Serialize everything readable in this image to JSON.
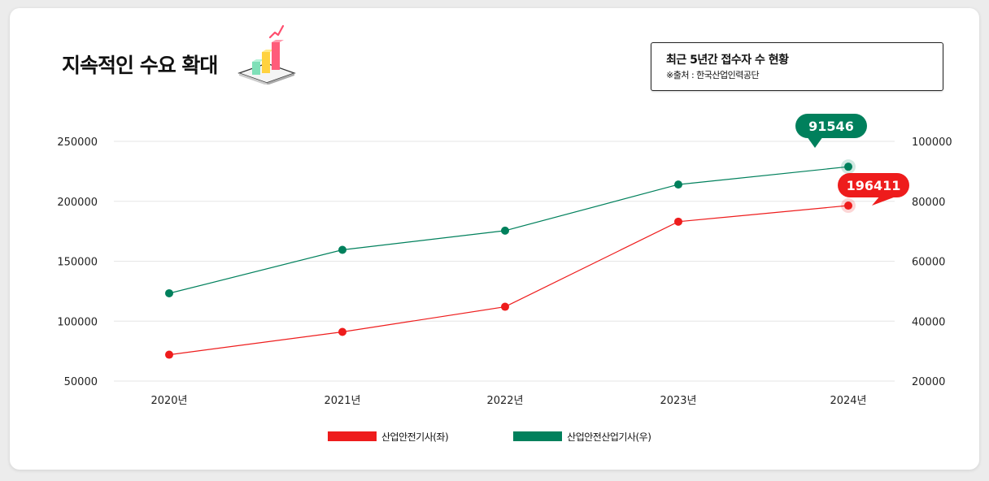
{
  "title": "지속적인 수요 확대",
  "source_box": {
    "title": "최근 5년간 접수자 수 현황",
    "note": "※출처 : 한국산업인력공단"
  },
  "colors": {
    "left_series": "#ee1c1c",
    "right_series": "#00805c",
    "grid": "#e6e6e6"
  },
  "icons": [
    "bar-chart-3d-icon"
  ],
  "chart_data": {
    "type": "line",
    "categories": [
      "2020년",
      "2021년",
      "2022년",
      "2023년",
      "2024년"
    ],
    "y_left": {
      "ticks": [
        "250000",
        "200000",
        "150000",
        "100000",
        "50000"
      ],
      "range": [
        50000,
        250000
      ]
    },
    "y_right": {
      "ticks": [
        "100000",
        "80000",
        "60000",
        "40000",
        "20000"
      ],
      "range": [
        20000,
        100000
      ]
    },
    "grid": true,
    "legend_position": "bottom",
    "series": [
      {
        "name": "산업안전기사(좌)",
        "axis": "left",
        "color": "#ee1c1c",
        "values": [
          72000,
          91000,
          112000,
          183000,
          196411
        ],
        "callout": {
          "index": 4,
          "label": "196411"
        }
      },
      {
        "name": "산업안전산업기사(우)",
        "axis": "right",
        "color": "#00805c",
        "values": [
          49300,
          63800,
          70200,
          85600,
          91546
        ],
        "callout": {
          "index": 4,
          "label": "91546"
        }
      }
    ]
  }
}
